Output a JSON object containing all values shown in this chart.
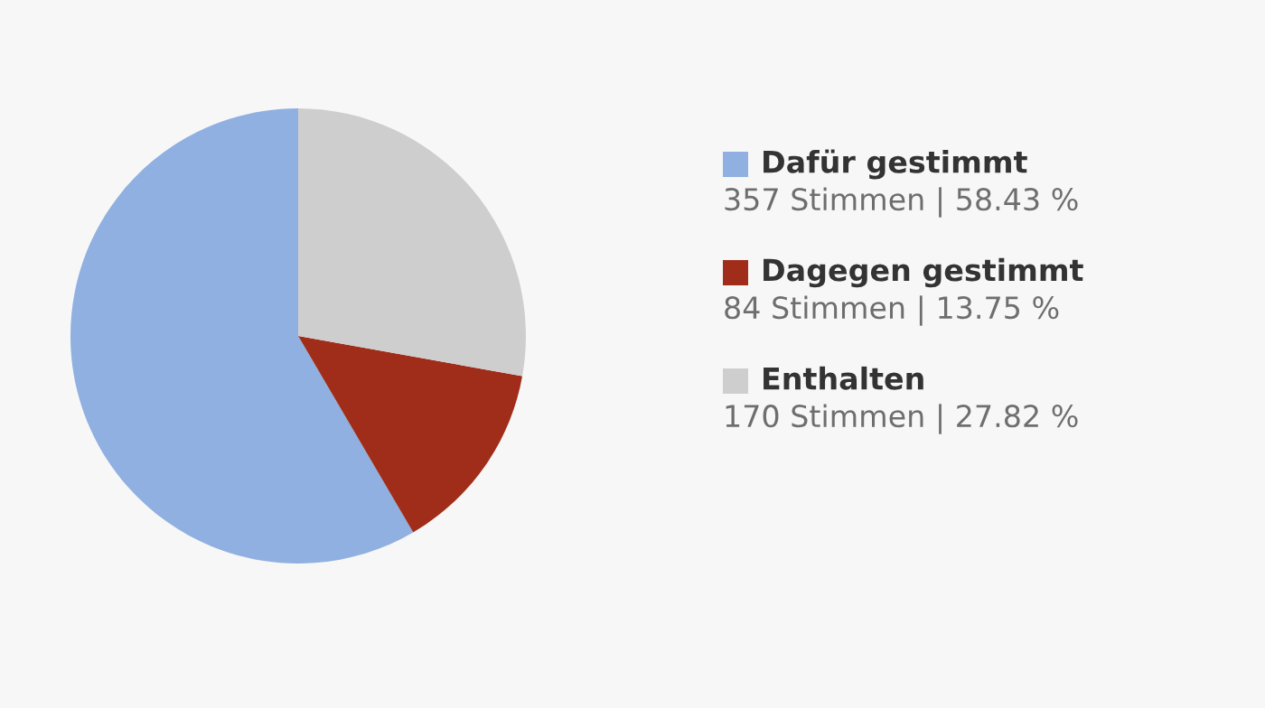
{
  "chart_data": {
    "type": "pie",
    "categories": [
      "Dafür gestimmt",
      "Dagegen gestimmt",
      "Enthalten"
    ],
    "values": [
      357,
      84,
      170
    ],
    "colors": [
      "#8fb0e0",
      "#a02d19",
      "#cecece"
    ],
    "value_labels": [
      "357 Stimmen | 58.43 %",
      "84 Stimmen | 13.75 %",
      "170 Stimmen | 27.82 %"
    ],
    "legend": "right"
  }
}
